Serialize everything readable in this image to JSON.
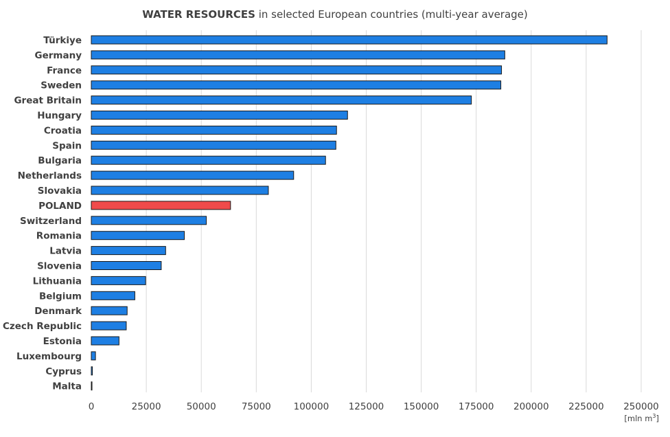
{
  "chart_data": {
    "type": "bar",
    "orientation": "horizontal",
    "title_bold": "WATER RESOURCES",
    "title_rest": " in selected European countries (multi-year average)",
    "categories": [
      "Türkiye",
      "Germany",
      "France",
      "Sweden",
      "Great Britain",
      "Hungary",
      "Croatia",
      "Spain",
      "Bulgaria",
      "Netherlands",
      "Slovakia",
      "POLAND",
      "Switzerland",
      "Romania",
      "Latvia",
      "Slovenia",
      "Lithuania",
      "Belgium",
      "Denmark",
      "Czech Republic",
      "Estonia",
      "Luxembourg",
      "Cyprus",
      "Malta"
    ],
    "values": [
      234500,
      188000,
      186500,
      186200,
      172800,
      116500,
      111500,
      111200,
      106500,
      92000,
      80500,
      63300,
      52300,
      42300,
      33800,
      31800,
      24700,
      19800,
      16300,
      15900,
      12600,
      1900,
      500,
      50
    ],
    "highlight_category": "POLAND",
    "colors": {
      "bar": "#1e7fe3",
      "highlight": "#f04b4b",
      "grid": "#d9d9d9",
      "text": "#404040"
    },
    "xlim": [
      0,
      250000
    ],
    "x_ticks": [
      0,
      25000,
      50000,
      75000,
      100000,
      125000,
      150000,
      175000,
      200000,
      225000,
      250000
    ],
    "x_tick_labels": [
      "0",
      "25000",
      "50000",
      "75000",
      "100000",
      "125000",
      "150000",
      "175000",
      "200000",
      "225000",
      "250000"
    ],
    "xlabel_prefix": "[mln m",
    "xlabel_sup": "3",
    "xlabel_suffix": "]",
    "grid": "vertical",
    "legend": "none"
  }
}
